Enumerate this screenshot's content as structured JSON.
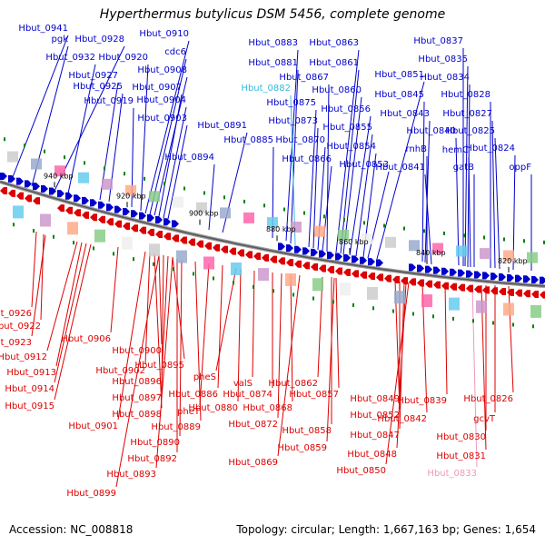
{
  "title": "Hyperthermus butylicus DSM 5456, complete genome",
  "footer": {
    "accession": "Accession: NC_008818",
    "summary": "Topology: circular; Length: 1,667,163 bp; Genes: 1,654"
  },
  "colors": {
    "forward": "#0000cc",
    "reverse": "#dd0000",
    "highlight_forward": "#33bbdd",
    "highlight_reverse": "#ee99bb",
    "backbone": "#808080",
    "gc_mark": "#008000"
  },
  "ticks": [
    "940 kbp",
    "920 kbp",
    "900 kbp",
    "880 kbp",
    "860 kbp",
    "840 kbp",
    "820 kbp"
  ],
  "genes_forward": [
    "Hbut_0941",
    "pgk",
    "Hbut_0928",
    "Hbut_0932",
    "Hbut_0927",
    "Hbut_0925",
    "Hbut_0919",
    "Hbut_0920",
    "Hbut_0910",
    "cdc6",
    "Hbut_0908",
    "Hbut_0907",
    "Hbut_0904",
    "Hbut_0903",
    "Hbut_0891",
    "Hbut_0894",
    "Hbut_0883",
    "Hbut_0881",
    "Hbut_0882",
    "Hbut_0885",
    "Hbut_0875",
    "Hbut_0873",
    "Hbut_0870",
    "Hbut_0866",
    "Hbut_0867",
    "Hbut_0863",
    "Hbut_0861",
    "Hbut_0860",
    "Hbut_0856",
    "Hbut_0855",
    "Hbut_0854",
    "Hbut_0853",
    "Hbut_0851",
    "Hbut_0845",
    "Hbut_0843",
    "rnhB",
    "Hbut_0841",
    "Hbut_0840",
    "Hbut_0837",
    "Hbut_0835",
    "Hbut_0834",
    "Hbut_0828",
    "Hbut_0827",
    "Hbut_0825",
    "hemC",
    "gatB",
    "Hbut_0824",
    "oppF"
  ],
  "genes_reverse": [
    "Hbut_0926",
    "Hbut_0922",
    "Hbut_0923",
    "Hbut_0912",
    "Hbut_0913",
    "Hbut_0914",
    "Hbut_0915",
    "Hbut_0906",
    "Hbut_0902",
    "Hbut_0900",
    "Hbut_0895",
    "Hbut_0896",
    "Hbut_0897",
    "Hbut_0898",
    "Hbut_0901",
    "pheT",
    "Hbut_0886",
    "pheS",
    "Hbut_0889",
    "Hbut_0890",
    "Hbut_0892",
    "Hbut_0893",
    "Hbut_0899",
    "Hbut_0880",
    "valS",
    "Hbut_0874",
    "Hbut_0868",
    "Hbut_0872",
    "Hbut_0869",
    "Hbut_0862",
    "Hbut_0857",
    "Hbut_0858",
    "Hbut_0859",
    "Hbut_0852",
    "Hbut_0849",
    "Hbut_0847",
    "Hbut_0848",
    "Hbut_0850",
    "Hbut_0842",
    "Hbut_0839",
    "Hbut_0826",
    "gcvT",
    "Hbut_0830",
    "Hbut_0831",
    "Hbut_0833"
  ]
}
